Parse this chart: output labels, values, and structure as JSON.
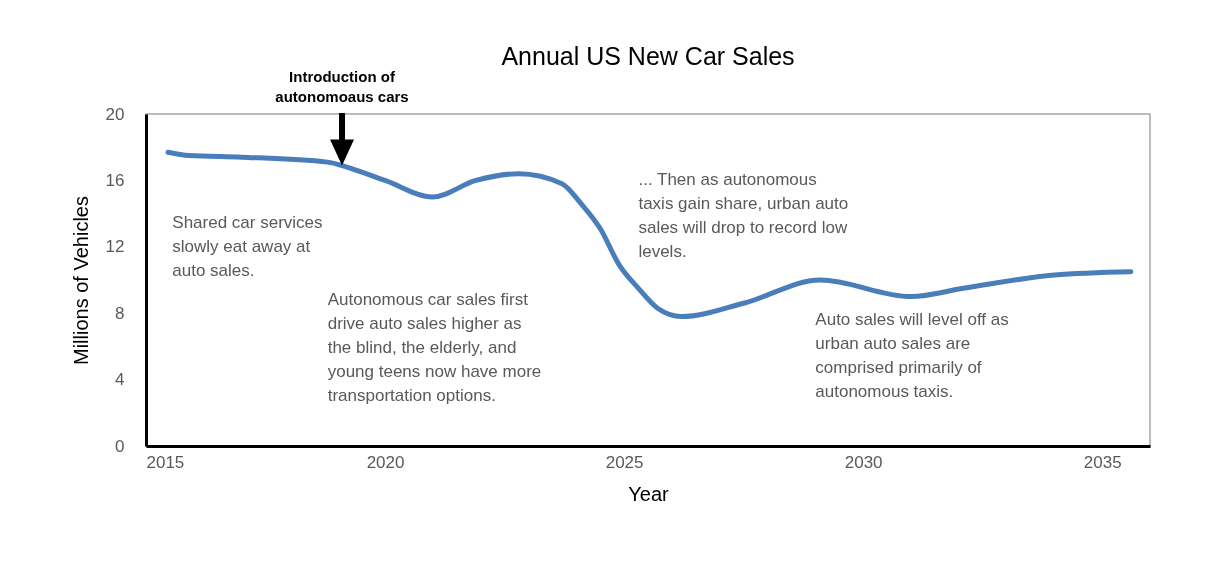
{
  "chart_data": {
    "type": "line",
    "title": "Annual US New Car Sales",
    "xlabel": "Year",
    "ylabel": "Millions of Vehicles",
    "x": [
      2015.46,
      2015.9,
      2017.0,
      2018.8,
      2019.2,
      2020.0,
      2021.0,
      2021.9,
      2022.8,
      2023.7,
      2024.1,
      2024.5,
      2024.9,
      2025.3,
      2025.7,
      2026.2,
      2027.5,
      2029.1,
      2031.0,
      2032.1,
      2034.0,
      2035.6
    ],
    "series": [
      {
        "color": "#4a7ebb",
        "values": [
          17.7,
          17.5,
          17.4,
          17.1,
          16.8,
          16.0,
          15.0,
          16.0,
          16.4,
          15.8,
          14.6,
          13.1,
          10.9,
          9.5,
          8.3,
          7.8,
          8.6,
          10.0,
          9.0,
          9.5,
          10.3,
          10.5
        ]
      }
    ],
    "xlim": [
      2015,
      2036
    ],
    "xticks": [
      2015,
      2020,
      2025,
      2030,
      2035
    ],
    "ylim": [
      0,
      20
    ],
    "yticks": [
      0,
      4,
      8,
      12,
      16,
      20
    ],
    "grid": false,
    "legend": false,
    "marker": "none",
    "line_style": "solid",
    "annotations": [
      "Introduction of\nautonomoaus cars",
      "Shared car services\nslowly eat away at\nauto sales.",
      "Autonomous car sales first\ndrive auto sales higher as\nthe blind, the elderly, and\nyoung teens now have more\ntransportation options.",
      "... Then as autonomous\ntaxis gain share, urban auto\nsales will drop to record low\nlevels.",
      "Auto sales will level off as\nurban auto sales are\ncomprised primarily of\nautonomous taxis."
    ]
  }
}
